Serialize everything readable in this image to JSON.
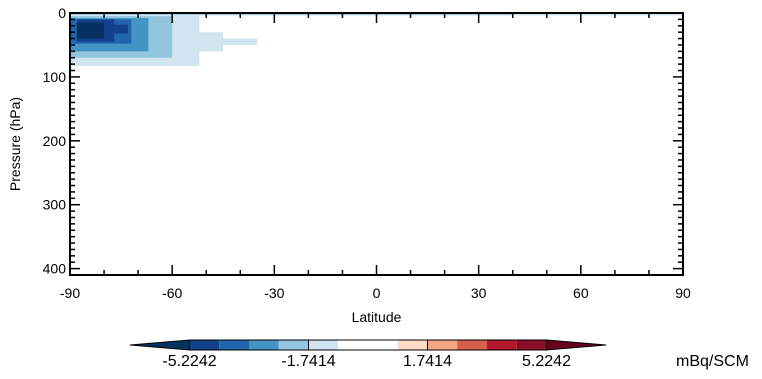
{
  "chart_data": {
    "type": "heatmap",
    "xlabel": "Latitude",
    "ylabel": "Pressure (hPa)",
    "xlim": [
      -90,
      90
    ],
    "ylim": [
      410,
      0
    ],
    "y_inverted": true,
    "x_ticks": [
      -90,
      -60,
      -30,
      0,
      30,
      60,
      90
    ],
    "x_tick_labels": [
      "-90",
      "-60",
      "-30",
      "0",
      "30",
      "60",
      "90"
    ],
    "y_ticks": [
      0,
      100,
      200,
      300,
      400
    ],
    "y_tick_labels": [
      "0",
      "100",
      "200",
      "300",
      "400"
    ],
    "colorbar": {
      "unit": "mBq/SCM",
      "tick_labels": [
        "-5.2242",
        "-1.7414",
        "1.7414",
        "5.2242"
      ],
      "tick_values": [
        -5.2242,
        -1.7414,
        1.7414,
        5.2242
      ],
      "min": -6.9656,
      "max": 6.9656,
      "extend": "both",
      "levels": [
        {
          "from": -6.9656,
          "to": -5.2242,
          "color": "#06305f"
        },
        {
          "from": -5.2242,
          "to": -4.3535,
          "color": "#11418a"
        },
        {
          "from": -4.3535,
          "to": -3.4828,
          "color": "#2166ac"
        },
        {
          "from": -3.4828,
          "to": -2.6121,
          "color": "#4393c3"
        },
        {
          "from": -2.6121,
          "to": -1.7414,
          "color": "#92c5de"
        },
        {
          "from": -1.7414,
          "to": -0.8707,
          "color": "#d1e5f0"
        },
        {
          "from": -0.8707,
          "to": 0.8707,
          "color": "#ffffff"
        },
        {
          "from": 0.8707,
          "to": 1.7414,
          "color": "#fddbc7"
        },
        {
          "from": 1.7414,
          "to": 2.6121,
          "color": "#f4a582"
        },
        {
          "from": 2.6121,
          "to": 3.4828,
          "color": "#d6604d"
        },
        {
          "from": 3.4828,
          "to": 4.3535,
          "color": "#b2182b"
        },
        {
          "from": 4.3535,
          "to": 5.2242,
          "color": "#8b0e27"
        },
        {
          "from": 5.2242,
          "to": 6.9656,
          "color": "#67001f"
        }
      ]
    },
    "cells": [
      {
        "lat": [
          -90,
          90
        ],
        "p": [
          0,
          3
        ],
        "color": "#d1e5f0"
      },
      {
        "lat": [
          -90,
          40
        ],
        "p": [
          0,
          3
        ],
        "color": "#92c5de"
      },
      {
        "lat": [
          -90,
          90
        ],
        "p": [
          3,
          4
        ],
        "color": "#d1e5f0"
      },
      {
        "lat": [
          -90,
          -52
        ],
        "p": [
          4,
          83
        ],
        "color": "#d1e5f0"
      },
      {
        "lat": [
          -52,
          -35
        ],
        "p": [
          40,
          50
        ],
        "color": "#d1e5f0"
      },
      {
        "lat": [
          -52,
          -45
        ],
        "p": [
          30,
          60
        ],
        "color": "#d1e5f0"
      },
      {
        "lat": [
          -90,
          -60
        ],
        "p": [
          5,
          70
        ],
        "color": "#92c5de"
      },
      {
        "lat": [
          -90,
          -67
        ],
        "p": [
          8,
          60
        ],
        "color": "#4393c3"
      },
      {
        "lat": [
          -90,
          -72
        ],
        "p": [
          10,
          48
        ],
        "color": "#2166ac"
      },
      {
        "lat": [
          -88,
          -77
        ],
        "p": [
          10,
          45
        ],
        "color": "#11418a"
      },
      {
        "lat": [
          -77,
          -73
        ],
        "p": [
          18,
          32
        ],
        "color": "#11418a"
      },
      {
        "lat": [
          -88,
          -80
        ],
        "p": [
          15,
          40
        ],
        "color": "#06305f"
      }
    ]
  }
}
